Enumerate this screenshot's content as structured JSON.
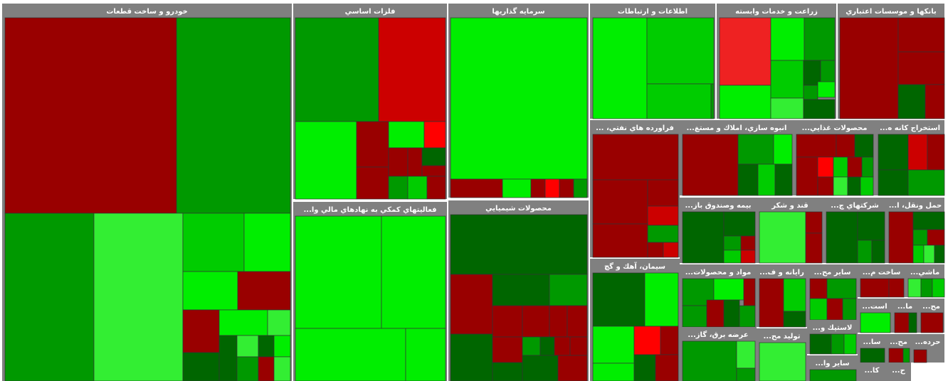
{
  "sectors": [
    {
      "title": "خودرو و ساخت قطعات"
    },
    {
      "title": "فلزات اساسي"
    },
    {
      "title": "سرمايه گذاريها"
    },
    {
      "title": "اطلاعات و ارتباطات"
    },
    {
      "title": "زراعت و خدمات وابسته"
    },
    {
      "title": "بانكها و موسسات اعتباري"
    },
    {
      "title": "فعاليتهاي كمكي به نهادهاي مالي وا..."
    },
    {
      "title": "محصولات شيميايي"
    },
    {
      "title": "فراورده هاي نفتي، ..."
    },
    {
      "title": "انبوه سازي، املاك و مستغ..."
    },
    {
      "title": "محصولات غذايي..."
    },
    {
      "title": "استخراج كانه ه..."
    },
    {
      "title": "بيمه وصندوق باز..."
    },
    {
      "title": "قند و شكر"
    },
    {
      "title": "شركتهاي چ..."
    },
    {
      "title": "حمل ونقل، ا..."
    },
    {
      "title": "سيمان، آهك و گچ"
    },
    {
      "title": "مواد و محصولات..."
    },
    {
      "title": "رايانه و ف..."
    },
    {
      "title": "ساير مح..."
    },
    {
      "title": "ساخت م..."
    },
    {
      "title": "ماشي..."
    },
    {
      "title": "عرضه برق، گاز..."
    },
    {
      "title": "توليد مح..."
    },
    {
      "title": "لاستيك و..."
    },
    {
      "title": "ساير وا..."
    },
    {
      "title": "است..."
    },
    {
      "title": "ما..."
    },
    {
      "title": "مح..."
    },
    {
      "title": "سا..."
    },
    {
      "title": "مح..."
    },
    {
      "title": "حرده..."
    },
    {
      "title": "كا..."
    },
    {
      "title": "ح..."
    }
  ]
}
